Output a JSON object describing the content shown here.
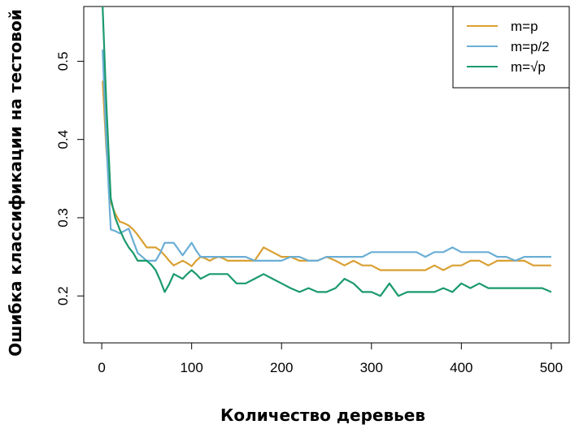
{
  "chart_data": {
    "type": "line",
    "xlabel": "Количество деревьев",
    "ylabel": "Ошибка классификации на тестовой",
    "xlim": [
      -20,
      520
    ],
    "ylim": [
      0.14,
      0.57
    ],
    "xticks": [
      0,
      100,
      200,
      300,
      400,
      500
    ],
    "yticks": [
      0.2,
      0.3,
      0.4,
      0.5
    ],
    "grid": false,
    "legend_position": "top-right",
    "series": [
      {
        "name": "m=p",
        "color": "#d9a032",
        "x": [
          1,
          5,
          10,
          15,
          20,
          25,
          30,
          35,
          40,
          45,
          50,
          55,
          60,
          65,
          70,
          75,
          80,
          85,
          90,
          95,
          100,
          105,
          110,
          115,
          120,
          125,
          130,
          135,
          140,
          145,
          150,
          160,
          170,
          180,
          190,
          200,
          210,
          220,
          230,
          240,
          250,
          260,
          270,
          280,
          290,
          300,
          310,
          320,
          330,
          340,
          350,
          360,
          370,
          380,
          390,
          400,
          410,
          420,
          430,
          440,
          450,
          460,
          470,
          480,
          490,
          500
        ],
        "y": [
          0.475,
          0.39,
          0.32,
          0.305,
          0.295,
          0.293,
          0.29,
          0.285,
          0.278,
          0.27,
          0.262,
          0.262,
          0.262,
          0.258,
          0.252,
          0.245,
          0.239,
          0.242,
          0.245,
          0.242,
          0.238,
          0.245,
          0.25,
          0.248,
          0.245,
          0.248,
          0.25,
          0.248,
          0.245,
          0.245,
          0.245,
          0.245,
          0.245,
          0.262,
          0.256,
          0.25,
          0.25,
          0.245,
          0.245,
          0.245,
          0.25,
          0.245,
          0.239,
          0.245,
          0.239,
          0.239,
          0.233,
          0.233,
          0.233,
          0.233,
          0.233,
          0.233,
          0.239,
          0.233,
          0.239,
          0.239,
          0.245,
          0.245,
          0.239,
          0.245,
          0.245,
          0.245,
          0.245,
          0.239,
          0.239,
          0.239
        ]
      },
      {
        "name": "m=p/2",
        "color": "#6aaed6",
        "x": [
          1,
          5,
          10,
          15,
          20,
          25,
          30,
          35,
          40,
          45,
          50,
          55,
          60,
          65,
          70,
          75,
          80,
          85,
          90,
          95,
          100,
          105,
          110,
          115,
          120,
          125,
          130,
          135,
          140,
          145,
          150,
          160,
          170,
          180,
          190,
          200,
          210,
          220,
          230,
          240,
          250,
          260,
          270,
          280,
          290,
          300,
          310,
          320,
          330,
          340,
          350,
          360,
          370,
          380,
          390,
          400,
          410,
          420,
          430,
          440,
          450,
          460,
          470,
          480,
          490,
          500
        ],
        "y": [
          0.515,
          0.4,
          0.285,
          0.283,
          0.28,
          0.283,
          0.286,
          0.27,
          0.255,
          0.25,
          0.245,
          0.245,
          0.245,
          0.255,
          0.268,
          0.268,
          0.268,
          0.26,
          0.252,
          0.26,
          0.268,
          0.258,
          0.25,
          0.25,
          0.25,
          0.25,
          0.25,
          0.25,
          0.25,
          0.25,
          0.25,
          0.25,
          0.245,
          0.245,
          0.245,
          0.245,
          0.25,
          0.25,
          0.245,
          0.245,
          0.25,
          0.25,
          0.25,
          0.25,
          0.25,
          0.256,
          0.256,
          0.256,
          0.256,
          0.256,
          0.256,
          0.25,
          0.256,
          0.256,
          0.262,
          0.256,
          0.256,
          0.256,
          0.256,
          0.25,
          0.25,
          0.245,
          0.25,
          0.25,
          0.25,
          0.25
        ]
      },
      {
        "name": "m=√p",
        "color": "#1a9a6c",
        "x": [
          1,
          5,
          10,
          15,
          20,
          25,
          30,
          35,
          40,
          45,
          50,
          55,
          60,
          65,
          70,
          75,
          80,
          85,
          90,
          95,
          100,
          105,
          110,
          115,
          120,
          125,
          130,
          135,
          140,
          145,
          150,
          160,
          170,
          180,
          190,
          200,
          210,
          220,
          230,
          240,
          250,
          260,
          270,
          280,
          290,
          300,
          310,
          320,
          330,
          340,
          350,
          360,
          370,
          380,
          390,
          400,
          410,
          420,
          430,
          440,
          450,
          460,
          470,
          480,
          490,
          500
        ],
        "y": [
          0.57,
          0.45,
          0.325,
          0.3,
          0.285,
          0.272,
          0.262,
          0.255,
          0.245,
          0.245,
          0.245,
          0.24,
          0.233,
          0.22,
          0.205,
          0.215,
          0.228,
          0.225,
          0.222,
          0.228,
          0.233,
          0.228,
          0.222,
          0.225,
          0.228,
          0.228,
          0.228,
          0.228,
          0.228,
          0.222,
          0.216,
          0.216,
          0.222,
          0.228,
          0.222,
          0.216,
          0.21,
          0.205,
          0.21,
          0.205,
          0.205,
          0.21,
          0.222,
          0.216,
          0.205,
          0.205,
          0.2,
          0.216,
          0.2,
          0.205,
          0.205,
          0.205,
          0.205,
          0.21,
          0.205,
          0.216,
          0.21,
          0.216,
          0.21,
          0.21,
          0.21,
          0.21,
          0.21,
          0.21,
          0.21,
          0.205
        ]
      }
    ]
  }
}
